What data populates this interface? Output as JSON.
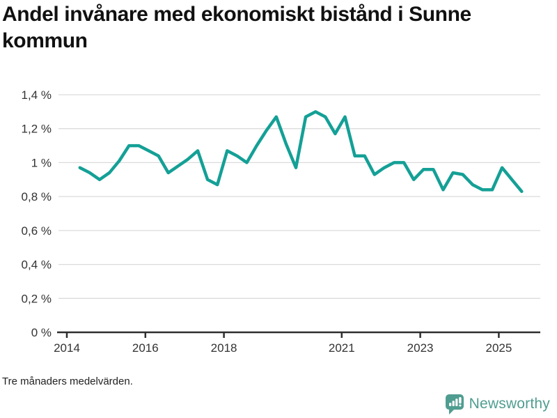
{
  "header": {
    "title": "Andel invånare med ekonomiskt bistånd i Sunne kommun"
  },
  "footer": {
    "note": "Tre månaders medelvärden.",
    "brand": "Newsworthy"
  },
  "colors": {
    "line": "#14A096",
    "brand": "#4F9D90",
    "grid": "#DBDBDB",
    "axis": "#2E2E2E",
    "tick_label": "#333333",
    "title": "#111111"
  },
  "chart_data": {
    "type": "line",
    "title": "Andel invånare med ekonomiskt bistånd i Sunne kommun",
    "subtitle": "Tre månaders medelvärden.",
    "unit": "%",
    "xlabel": "",
    "ylabel": "",
    "ylim": [
      0,
      1.4
    ],
    "xlim": [
      2013.8,
      2026.05
    ],
    "grid": "horizontal",
    "legend": "none",
    "y_ticks": [
      {
        "value": 0,
        "label": "0 %"
      },
      {
        "value": 0.2,
        "label": "0,2 %"
      },
      {
        "value": 0.4,
        "label": "0,4 %"
      },
      {
        "value": 0.6,
        "label": "0,6 %"
      },
      {
        "value": 0.8,
        "label": "0,8 %"
      },
      {
        "value": 1,
        "label": "1 %"
      },
      {
        "value": 1.2,
        "label": "1,2 %"
      },
      {
        "value": 1.4,
        "label": "1,4 %"
      }
    ],
    "x_ticks": [
      {
        "value": 2014,
        "label": "2014"
      },
      {
        "value": 2016,
        "label": "2016"
      },
      {
        "value": 2018,
        "label": "2018"
      },
      {
        "value": 2021,
        "label": "2021"
      },
      {
        "value": 2023,
        "label": "2023"
      },
      {
        "value": 2025,
        "label": "2025"
      }
    ],
    "series": [
      {
        "name": "andel-ekonomiskt-bistand",
        "color": "#14A096",
        "points": [
          {
            "date": "2014-05",
            "value": 0.97
          },
          {
            "date": "2014-08",
            "value": 0.94
          },
          {
            "date": "2014-11",
            "value": 0.9
          },
          {
            "date": "2015-02",
            "value": 0.94
          },
          {
            "date": "2015-05",
            "value": 1.01
          },
          {
            "date": "2015-08",
            "value": 1.1
          },
          {
            "date": "2015-11",
            "value": 1.1
          },
          {
            "date": "2016-02",
            "value": 1.07
          },
          {
            "date": "2016-05",
            "value": 1.04
          },
          {
            "date": "2016-08",
            "value": 0.94
          },
          {
            "date": "2016-11",
            "value": 0.98
          },
          {
            "date": "2017-02",
            "value": 1.02
          },
          {
            "date": "2017-05",
            "value": 1.07
          },
          {
            "date": "2017-08",
            "value": 0.9
          },
          {
            "date": "2017-11",
            "value": 0.87
          },
          {
            "date": "2018-02",
            "value": 1.07
          },
          {
            "date": "2018-05",
            "value": 1.04
          },
          {
            "date": "2018-08",
            "value": 1.0
          },
          {
            "date": "2018-11",
            "value": 1.1
          },
          {
            "date": "2019-02",
            "value": 1.19
          },
          {
            "date": "2019-05",
            "value": 1.27
          },
          {
            "date": "2019-08",
            "value": 1.11
          },
          {
            "date": "2019-11",
            "value": 0.97
          },
          {
            "date": "2020-02",
            "value": 1.27
          },
          {
            "date": "2020-05",
            "value": 1.3
          },
          {
            "date": "2020-08",
            "value": 1.27
          },
          {
            "date": "2020-11",
            "value": 1.17
          },
          {
            "date": "2021-02",
            "value": 1.27
          },
          {
            "date": "2021-05",
            "value": 1.04
          },
          {
            "date": "2021-08",
            "value": 1.04
          },
          {
            "date": "2021-11",
            "value": 0.93
          },
          {
            "date": "2022-02",
            "value": 0.97
          },
          {
            "date": "2022-05",
            "value": 1.0
          },
          {
            "date": "2022-08",
            "value": 1.0
          },
          {
            "date": "2022-11",
            "value": 0.9
          },
          {
            "date": "2023-02",
            "value": 0.96
          },
          {
            "date": "2023-05",
            "value": 0.96
          },
          {
            "date": "2023-08",
            "value": 0.84
          },
          {
            "date": "2023-11",
            "value": 0.94
          },
          {
            "date": "2024-02",
            "value": 0.93
          },
          {
            "date": "2024-05",
            "value": 0.87
          },
          {
            "date": "2024-08",
            "value": 0.84
          },
          {
            "date": "2024-11",
            "value": 0.84
          },
          {
            "date": "2025-02",
            "value": 0.97
          },
          {
            "date": "2025-05",
            "value": 0.9
          },
          {
            "date": "2025-08",
            "value": 0.83
          }
        ]
      }
    ]
  }
}
